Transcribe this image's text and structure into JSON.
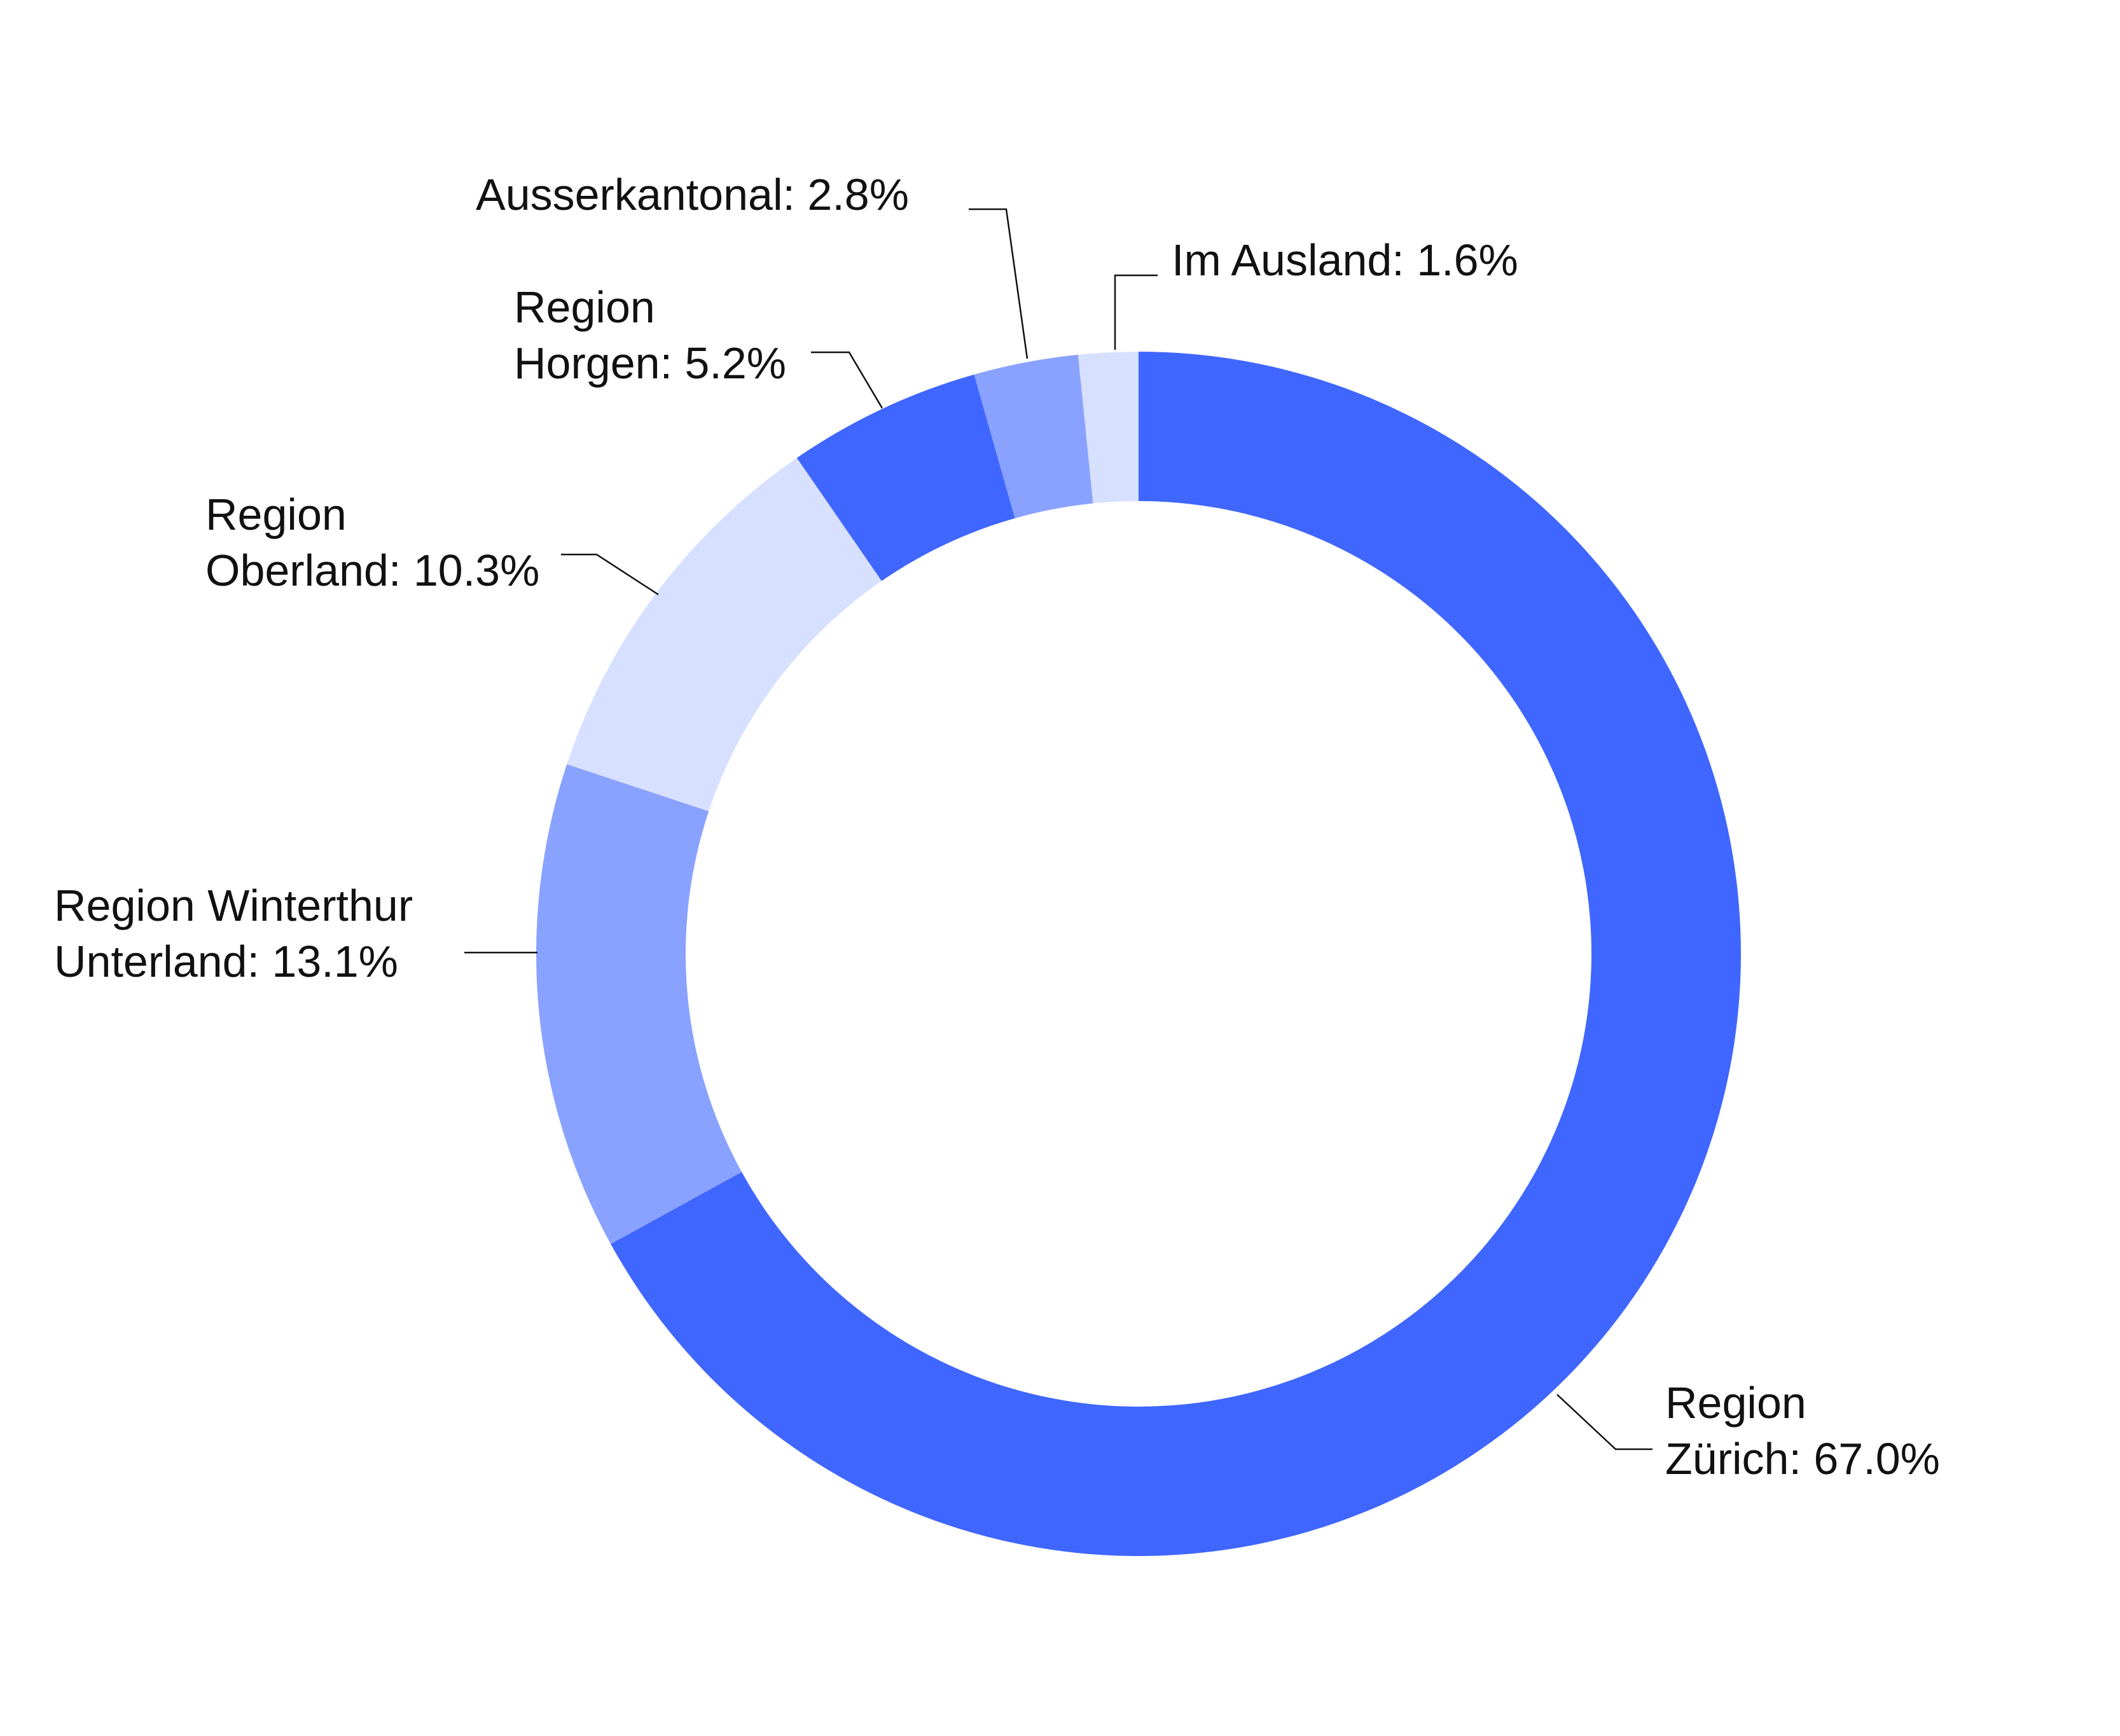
{
  "chart_data": {
    "type": "pie",
    "donut": true,
    "legend": "none",
    "start_direction": "top",
    "clockwise": true,
    "slices": [
      {
        "name": "Region Zürich",
        "label_lines": [
          "Region",
          "Zürich: 67.0%"
        ],
        "value": 67.0,
        "color": "#3f66ff"
      },
      {
        "name": "Region Winterthur Unterland",
        "label_lines": [
          "Region Winterthur",
          "Unterland: 13.1%"
        ],
        "value": 13.1,
        "color": "#8aa2ff"
      },
      {
        "name": "Region Oberland",
        "label_lines": [
          "Region",
          "Oberland: 10.3%"
        ],
        "value": 10.3,
        "color": "#d8e0ff"
      },
      {
        "name": "Region Horgen",
        "label_lines": [
          "Region",
          "Horgen: 5.2%"
        ],
        "value": 5.2,
        "color": "#3f66ff"
      },
      {
        "name": "Ausserkantonal",
        "label_lines": [
          "Ausserkantonal: 2.8%"
        ],
        "value": 2.8,
        "color": "#8aa2ff"
      },
      {
        "name": "Im Ausland",
        "label_lines": [
          "Im Ausland: 1.6%"
        ],
        "value": 1.6,
        "color": "#d8e0ff"
      }
    ]
  }
}
